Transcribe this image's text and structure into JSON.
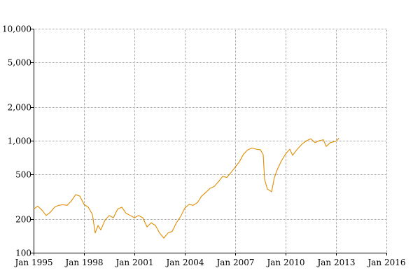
{
  "chart_data": {
    "type": "line",
    "title": "",
    "xlabel": "",
    "ylabel": "",
    "y_scale": "log",
    "grid": true,
    "legend": "none",
    "xlim": [
      "1995-01",
      "2016-01"
    ],
    "ylim": [
      100,
      10000
    ],
    "x_ticks": [
      {
        "label": "Jan 1995",
        "value": "1995-01"
      },
      {
        "label": "Jan 1998",
        "value": "1998-01"
      },
      {
        "label": "Jan 2001",
        "value": "2001-01"
      },
      {
        "label": "Jan 2004",
        "value": "2004-01"
      },
      {
        "label": "Jan 2007",
        "value": "2007-01"
      },
      {
        "label": "Jan 2010",
        "value": "2010-01"
      },
      {
        "label": "Jan 2013",
        "value": "2013-01"
      },
      {
        "label": "Jan 2016",
        "value": "2016-01"
      }
    ],
    "y_ticks": [
      {
        "label": "100",
        "value": 100
      },
      {
        "label": "200",
        "value": 200
      },
      {
        "label": "500",
        "value": 500
      },
      {
        "label": "1,000",
        "value": 1000
      },
      {
        "label": "2,000",
        "value": 2000
      },
      {
        "label": "5,000",
        "value": 5000
      },
      {
        "label": "10,000",
        "value": 10000
      }
    ],
    "series": [
      {
        "color": "#e08c00",
        "points": [
          [
            "1995-01",
            245
          ],
          [
            "1995-04",
            260
          ],
          [
            "1995-07",
            240
          ],
          [
            "1995-10",
            215
          ],
          [
            "1996-01",
            230
          ],
          [
            "1996-04",
            255
          ],
          [
            "1996-07",
            265
          ],
          [
            "1996-10",
            268
          ],
          [
            "1997-01",
            265
          ],
          [
            "1997-04",
            290
          ],
          [
            "1997-07",
            330
          ],
          [
            "1997-10",
            320
          ],
          [
            "1998-01",
            270
          ],
          [
            "1998-04",
            255
          ],
          [
            "1998-07",
            220
          ],
          [
            "1998-09",
            150
          ],
          [
            "1998-11",
            175
          ],
          [
            "1999-01",
            160
          ],
          [
            "1999-04",
            195
          ],
          [
            "1999-07",
            215
          ],
          [
            "1999-10",
            205
          ],
          [
            "2000-01",
            245
          ],
          [
            "2000-04",
            255
          ],
          [
            "2000-07",
            225
          ],
          [
            "2000-10",
            215
          ],
          [
            "2001-01",
            205
          ],
          [
            "2001-04",
            215
          ],
          [
            "2001-07",
            205
          ],
          [
            "2001-10",
            170
          ],
          [
            "2002-01",
            185
          ],
          [
            "2002-04",
            175
          ],
          [
            "2002-07",
            150
          ],
          [
            "2002-10",
            135
          ],
          [
            "2003-01",
            150
          ],
          [
            "2003-04",
            155
          ],
          [
            "2003-07",
            185
          ],
          [
            "2003-10",
            210
          ],
          [
            "2004-01",
            250
          ],
          [
            "2004-04",
            270
          ],
          [
            "2004-07",
            265
          ],
          [
            "2004-10",
            280
          ],
          [
            "2005-01",
            320
          ],
          [
            "2005-04",
            345
          ],
          [
            "2005-07",
            375
          ],
          [
            "2005-10",
            390
          ],
          [
            "2006-01",
            430
          ],
          [
            "2006-04",
            480
          ],
          [
            "2006-07",
            470
          ],
          [
            "2006-10",
            520
          ],
          [
            "2007-01",
            580
          ],
          [
            "2007-04",
            650
          ],
          [
            "2007-07",
            760
          ],
          [
            "2007-10",
            830
          ],
          [
            "2008-01",
            860
          ],
          [
            "2008-04",
            840
          ],
          [
            "2008-07",
            830
          ],
          [
            "2008-09",
            750
          ],
          [
            "2008-10",
            450
          ],
          [
            "2008-12",
            370
          ],
          [
            "2009-03",
            350
          ],
          [
            "2009-05",
            470
          ],
          [
            "2009-07",
            550
          ],
          [
            "2009-10",
            660
          ],
          [
            "2010-01",
            760
          ],
          [
            "2010-04",
            840
          ],
          [
            "2010-06",
            740
          ],
          [
            "2010-09",
            830
          ],
          [
            "2011-01",
            940
          ],
          [
            "2011-04",
            1000
          ],
          [
            "2011-07",
            1040
          ],
          [
            "2011-10",
            960
          ],
          [
            "2012-01",
            1000
          ],
          [
            "2012-04",
            1020
          ],
          [
            "2012-06",
            890
          ],
          [
            "2012-09",
            960
          ],
          [
            "2013-01",
            990
          ],
          [
            "2013-03",
            1050
          ]
        ]
      }
    ]
  }
}
